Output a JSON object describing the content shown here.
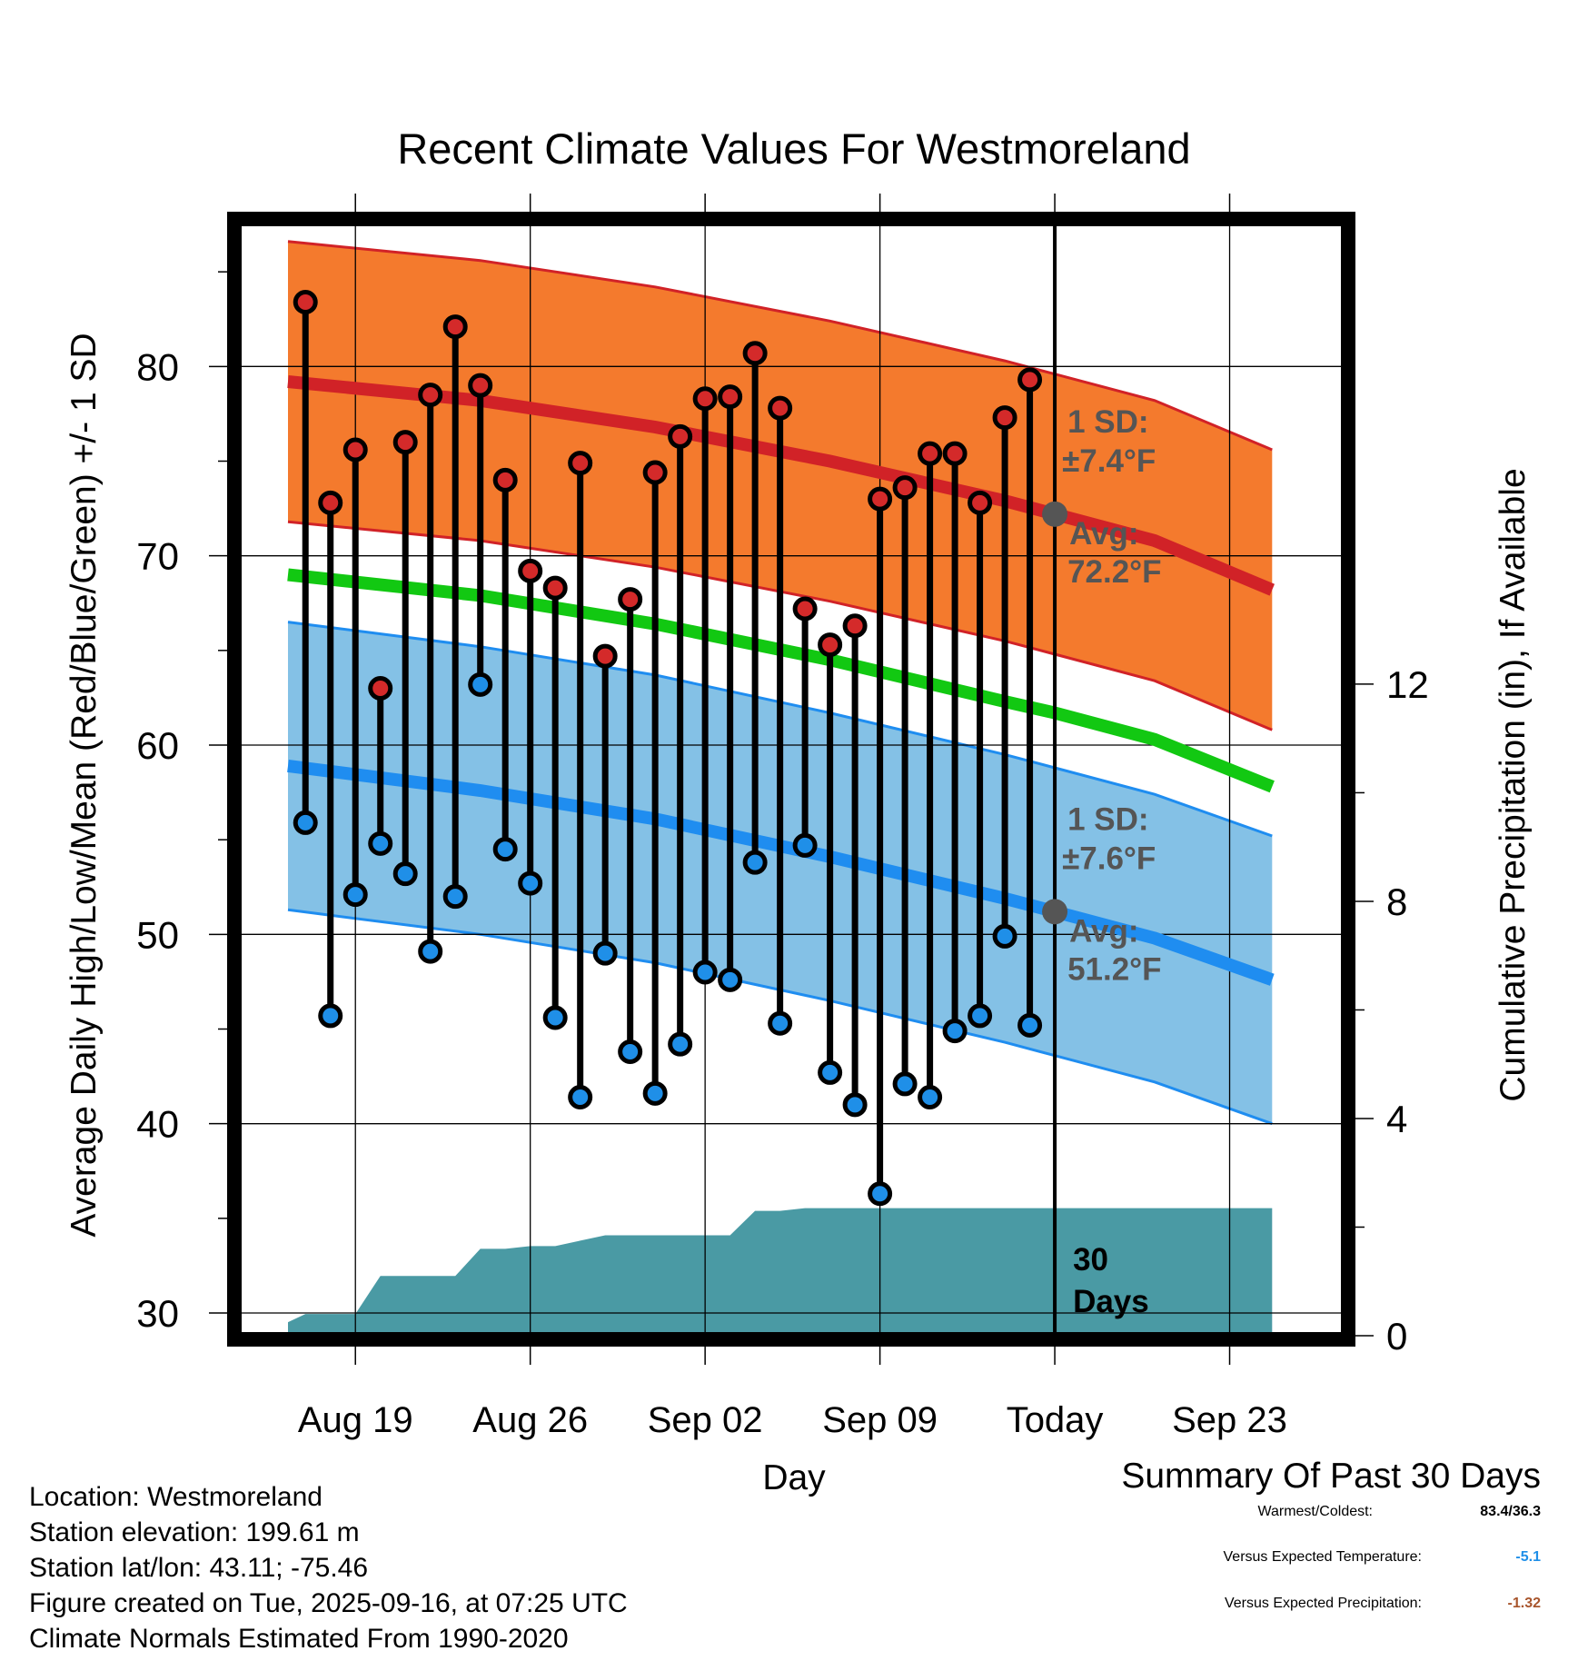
{
  "chart_data": {
    "type": "line",
    "title": "Recent Climate Values For Westmoreland",
    "xlabel": "Day",
    "ylabel": "Average Daily High/Low/Mean (Red/Blue/Green) +/- 1 SD",
    "y2label": "Cumulative Precipitation (in), If Available",
    "ylim": [
      28.8,
      87.6
    ],
    "y_ticks": [
      30,
      40,
      50,
      60,
      70,
      80
    ],
    "y2lim": [
      0,
      20.5
    ],
    "y2_ticks": [
      0,
      4,
      8,
      12
    ],
    "xlim": [
      -4.7,
      39.6
    ],
    "x_ticks": [
      {
        "day": 0,
        "label": "Aug 19"
      },
      {
        "day": 7,
        "label": "Aug 26"
      },
      {
        "day": 14,
        "label": "Sep 02"
      },
      {
        "day": 21,
        "label": "Sep 09"
      },
      {
        "day": 28,
        "label": "Today"
      },
      {
        "day": 35,
        "label": "Sep 23"
      }
    ],
    "today_day": 28,
    "days": [
      -2,
      -1,
      0,
      1,
      2,
      3,
      4,
      5,
      6,
      7,
      8,
      9,
      10,
      11,
      12,
      13,
      14,
      15,
      16,
      17,
      18,
      19,
      20,
      21,
      22,
      23,
      24,
      25,
      26,
      27
    ],
    "daily_high": [
      83.4,
      72.8,
      75.6,
      63.0,
      76.0,
      78.5,
      82.1,
      79.0,
      74.0,
      69.2,
      68.3,
      74.9,
      64.7,
      67.7,
      74.4,
      76.3,
      78.3,
      78.4,
      80.7,
      77.8,
      67.2,
      65.3,
      66.3,
      73.0,
      73.6,
      75.4,
      75.4,
      72.8,
      77.3,
      79.3
    ],
    "daily_low": [
      55.9,
      45.7,
      52.1,
      54.8,
      53.2,
      49.1,
      52.0,
      63.2,
      54.5,
      52.7,
      45.6,
      41.4,
      49.0,
      43.8,
      41.6,
      44.2,
      48.0,
      47.6,
      53.8,
      45.3,
      54.7,
      42.7,
      41.0,
      36.3,
      42.1,
      41.4,
      44.9,
      45.7,
      49.9,
      45.2
    ],
    "normal_days": [
      -2.7,
      5,
      12,
      19,
      26,
      28,
      32,
      36.7
    ],
    "normal_high": [
      79.2,
      78.2,
      76.8,
      75.0,
      72.9,
      72.2,
      70.8,
      68.2
    ],
    "normal_low": [
      58.9,
      57.6,
      56.1,
      54.1,
      51.9,
      51.2,
      49.8,
      47.6
    ],
    "normal_mean": [
      69.0,
      67.9,
      66.4,
      64.5,
      62.3,
      61.7,
      60.3,
      57.8
    ],
    "high_sd": 7.4,
    "low_sd": 7.6,
    "precip_days": [
      -2.7,
      -2,
      0,
      1,
      4,
      5,
      6,
      7,
      8,
      9,
      10,
      11,
      12,
      14,
      15,
      16,
      17,
      18,
      19,
      20,
      36.7
    ],
    "precip_cum": [
      0.25,
      0.4,
      0.4,
      1.1,
      1.1,
      1.6,
      1.6,
      1.65,
      1.65,
      1.75,
      1.85,
      1.85,
      1.85,
      1.85,
      1.85,
      2.3,
      2.3,
      2.35,
      2.35,
      2.35,
      2.35
    ],
    "annotations": {
      "high_sd_label": "1 SD:",
      "high_sd_value": "±7.4°F",
      "high_avg_label": "Avg:",
      "high_avg_value": "72.2°F",
      "low_sd_label": "1 SD:",
      "low_sd_value": "±7.6°F",
      "low_avg_label": "Avg:",
      "low_avg_value": "51.2°F",
      "precip_days_1": "30",
      "precip_days_2": "Days"
    },
    "colors": {
      "high_band": "#f47a2d",
      "high_line": "#d12227",
      "low_band": "#84c1e6",
      "low_line": "#1f8df0",
      "mean_line": "#12c812",
      "precip": "#4a9aa4",
      "annotation": "#555555",
      "high_marker": "#d42a2a",
      "low_marker": "#1f8fe8"
    }
  },
  "info": {
    "location": "Location: Westmoreland",
    "elevation": "Station elevation: 199.61 m",
    "latlon": "Station lat/lon: 43.11; -75.46",
    "created": "Figure created on Tue, 2025-09-16, at 07:25 UTC",
    "normals": "Climate Normals Estimated From 1990-2020"
  },
  "summary": {
    "title": "Summary Of Past 30 Days",
    "warmest_coldest_label": "Warmest/Coldest:",
    "warmest_coldest_value": "83.4/36.3",
    "temp_label": "Versus Expected Temperature:",
    "temp_value": "-5.1",
    "temp_color": "#1f8fe8",
    "precip_label": "Versus Expected Precipitation:",
    "precip_value": "-1.32",
    "precip_color": "#a8552c"
  }
}
